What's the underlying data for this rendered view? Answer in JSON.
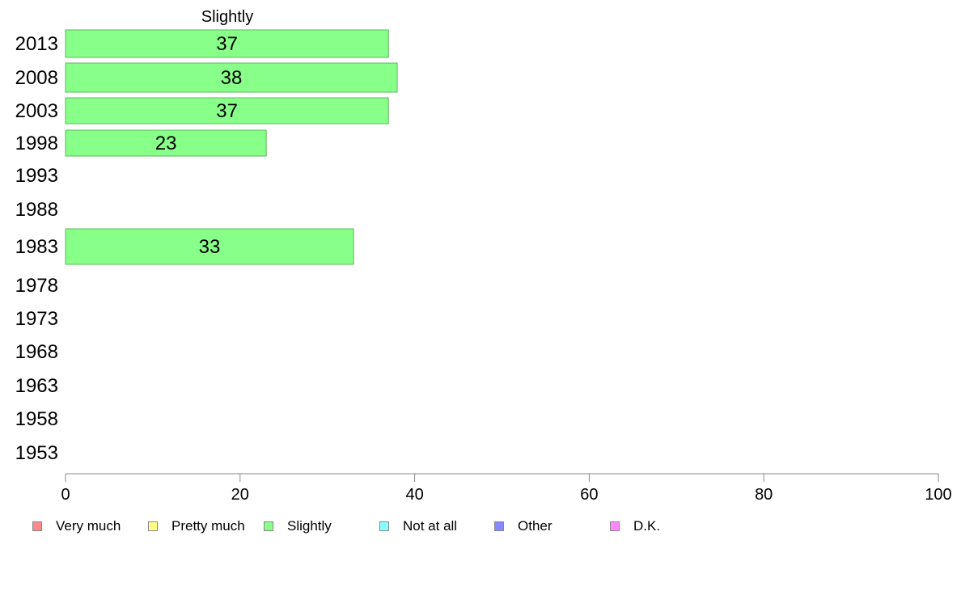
{
  "chart_data": {
    "type": "bar",
    "orientation": "horizontal",
    "series_header": "Slightly",
    "categories": [
      "2013",
      "2008",
      "2003",
      "1998",
      "1993",
      "1988",
      "1983",
      "1978",
      "1973",
      "1968",
      "1963",
      "1958",
      "1953"
    ],
    "series": [
      {
        "name": "Slightly",
        "color": "#88ff88",
        "values": [
          37,
          38,
          37,
          23,
          null,
          null,
          33,
          null,
          null,
          null,
          null,
          null,
          null
        ]
      }
    ],
    "xlim": [
      0,
      100
    ],
    "xticks": [
      "0",
      "20",
      "40",
      "60",
      "80",
      "100"
    ],
    "grid": false,
    "legend_position": "bottom",
    "legend": [
      {
        "label": "Very much",
        "color": "#ff8888"
      },
      {
        "label": "Pretty much",
        "color": "#ffff88"
      },
      {
        "label": "Slightly",
        "color": "#88ff88"
      },
      {
        "label": "Not at all",
        "color": "#88ffff"
      },
      {
        "label": "Other",
        "color": "#8888ff"
      },
      {
        "label": "D.K.",
        "color": "#ff88ff"
      }
    ]
  }
}
